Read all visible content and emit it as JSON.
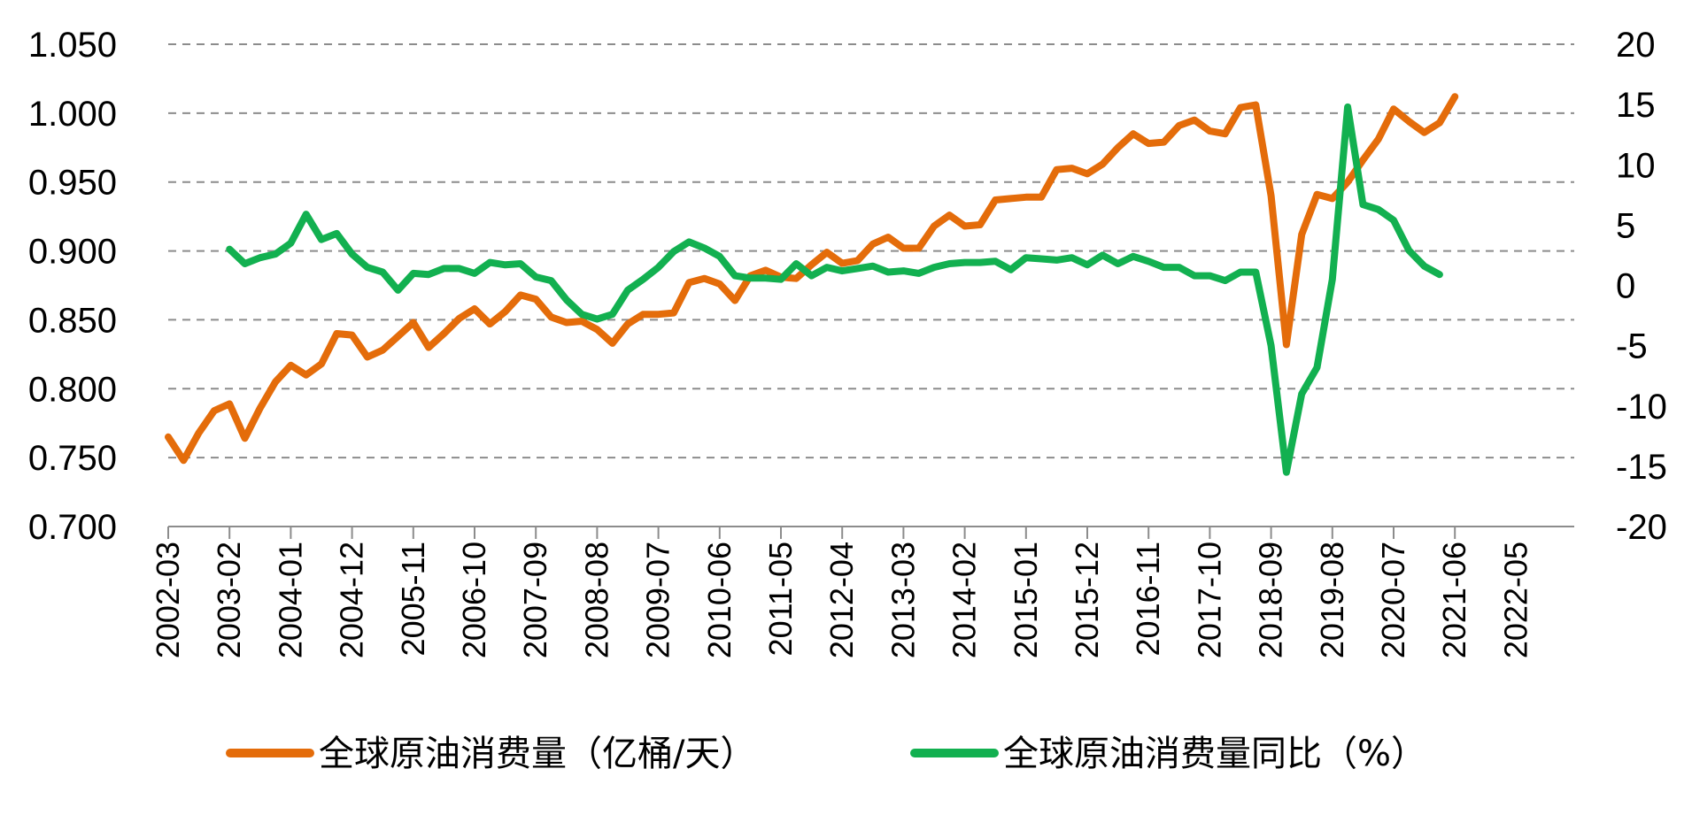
{
  "chart_data": {
    "type": "line",
    "x_tick_labels": [
      "2002-03",
      "2003-02",
      "2004-01",
      "2004-12",
      "2005-11",
      "2006-10",
      "2007-09",
      "2008-08",
      "2009-07",
      "2010-06",
      "2011-05",
      "2012-04",
      "2013-03",
      "2014-02",
      "2015-01",
      "2015-12",
      "2016-11",
      "2017-10",
      "2018-09",
      "2019-08",
      "2020-07",
      "2021-06",
      "2022-05"
    ],
    "y_left": {
      "ticks": [
        "0.700",
        "0.750",
        "0.800",
        "0.850",
        "0.900",
        "0.950",
        "1.000",
        "1.050"
      ],
      "min": 0.7,
      "max": 1.05
    },
    "y_right": {
      "ticks": [
        "-20",
        "-15",
        "-10",
        "-5",
        "0",
        "5",
        "10",
        "15",
        "20"
      ],
      "min": -20,
      "max": 20
    },
    "gridlines": "dashed-horizontal",
    "legend_position": "bottom",
    "series": [
      {
        "name": "全球原油消费量（亿桶/天）",
        "axis": "left",
        "color": "#E46C0A",
        "values": [
          0.765,
          0.748,
          0.768,
          0.784,
          0.789,
          0.764,
          0.786,
          0.805,
          0.817,
          0.81,
          0.818,
          0.84,
          0.839,
          0.823,
          0.828,
          0.838,
          0.848,
          0.83,
          0.84,
          0.851,
          0.858,
          0.847,
          0.856,
          0.868,
          0.865,
          0.852,
          0.848,
          0.849,
          0.843,
          0.833,
          0.847,
          0.854,
          0.854,
          0.855,
          0.877,
          0.88,
          0.876,
          0.864,
          0.882,
          0.886,
          0.881,
          0.88,
          0.89,
          0.899,
          0.891,
          0.893,
          0.905,
          0.91,
          0.902,
          0.902,
          0.918,
          0.926,
          0.918,
          0.919,
          0.937,
          0.938,
          0.939,
          0.939,
          0.959,
          0.96,
          0.956,
          0.963,
          0.975,
          0.985,
          0.978,
          0.979,
          0.991,
          0.995,
          0.987,
          0.985,
          1.004,
          1.006,
          0.94,
          0.832,
          0.912,
          0.941,
          0.938,
          0.95,
          0.966,
          0.981,
          1.003,
          0.994,
          0.986,
          0.993,
          1.012
        ]
      },
      {
        "name": "全球原油消费量同比（%）",
        "axis": "right",
        "color": "#12B050",
        "values": [
          3.0,
          1.8,
          2.3,
          2.6,
          3.5,
          5.9,
          3.8,
          4.3,
          2.6,
          1.5,
          1.1,
          -0.4,
          1.0,
          0.9,
          1.4,
          1.4,
          1.0,
          1.9,
          1.7,
          1.8,
          0.7,
          0.4,
          -1.2,
          -2.4,
          -2.8,
          -2.4,
          -0.4,
          0.5,
          1.5,
          2.8,
          3.6,
          3.1,
          2.4,
          0.8,
          0.6,
          0.6,
          0.5,
          1.8,
          0.8,
          1.5,
          1.2,
          1.4,
          1.6,
          1.1,
          1.2,
          1.0,
          1.5,
          1.8,
          1.9,
          1.9,
          2.0,
          1.3,
          2.3,
          2.2,
          2.1,
          2.3,
          1.7,
          2.5,
          1.8,
          2.4,
          2.0,
          1.5,
          1.5,
          0.8,
          0.8,
          0.4,
          1.1,
          1.1,
          -5.0,
          -15.5,
          -9.0,
          -6.8,
          0.5,
          14.8,
          6.7,
          6.3,
          5.4,
          2.9,
          1.6,
          0.9
        ]
      }
    ]
  }
}
